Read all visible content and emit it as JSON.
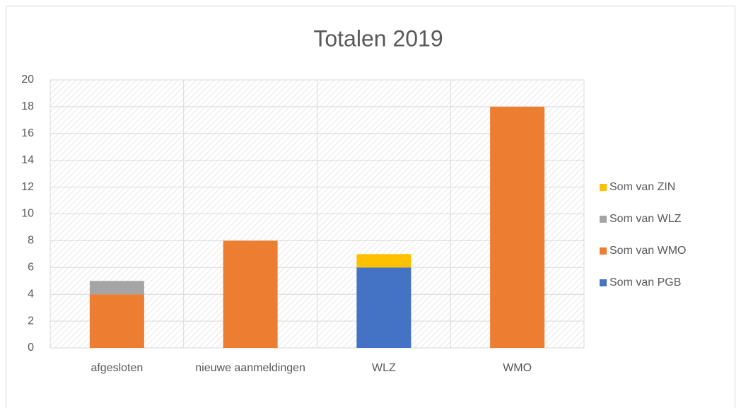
{
  "chart_data": {
    "type": "stacked_bar",
    "title": "Totalen 2019",
    "categories": [
      "afgesloten",
      "nieuwe aanmeldingen",
      "WLZ",
      "WMO"
    ],
    "series": [
      {
        "name": "Som van PGB",
        "color": "#4472c4",
        "values": [
          null,
          null,
          6,
          null
        ]
      },
      {
        "name": "Som van WMO",
        "color": "#ed7d31",
        "values": [
          4,
          8,
          null,
          18
        ]
      },
      {
        "name": "Som van WLZ",
        "color": "#a5a5a5",
        "values": [
          1,
          null,
          null,
          null
        ]
      },
      {
        "name": "Som van ZIN",
        "color": "#ffc000",
        "values": [
          null,
          null,
          1,
          null
        ]
      }
    ],
    "ylim": [
      0,
      20
    ],
    "yticks": [
      0,
      2,
      4,
      6,
      8,
      10,
      12,
      14,
      16,
      18,
      20
    ],
    "grid": true,
    "legend": "right"
  }
}
